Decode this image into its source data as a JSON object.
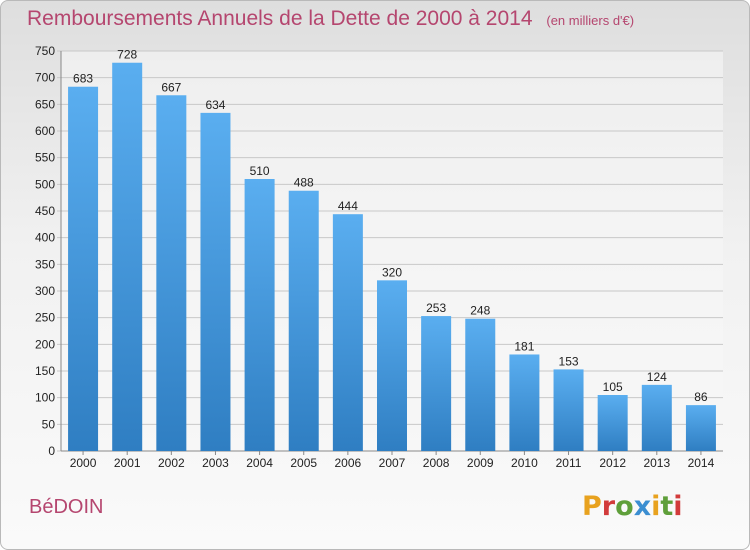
{
  "title": "Remboursements Annuels de la Dette de 2000 à 2014",
  "subtitle": "(en milliers d'€)",
  "commune": "BéDOIN",
  "logo_text": "Proxiti",
  "colors": {
    "title": "#b5466f",
    "bar_top": "#5aaef0",
    "bar_bottom": "#2f7ec2",
    "grid": "#c8c8c8",
    "axis_text": "#222222"
  },
  "chart_data": {
    "type": "bar",
    "title": "Remboursements Annuels de la Dette de 2000 à 2014",
    "subtitle": "(en milliers d'€)",
    "categories": [
      "2000",
      "2001",
      "2002",
      "2003",
      "2004",
      "2005",
      "2006",
      "2007",
      "2008",
      "2009",
      "2010",
      "2011",
      "2012",
      "2013",
      "2014"
    ],
    "values": [
      683,
      728,
      667,
      634,
      510,
      488,
      444,
      320,
      253,
      248,
      181,
      153,
      105,
      124,
      86
    ],
    "ylim": [
      0,
      750
    ],
    "yticks": [
      0,
      50,
      100,
      150,
      200,
      250,
      300,
      350,
      400,
      450,
      500,
      550,
      600,
      650,
      700,
      750
    ],
    "grid": true,
    "data_labels": true
  }
}
